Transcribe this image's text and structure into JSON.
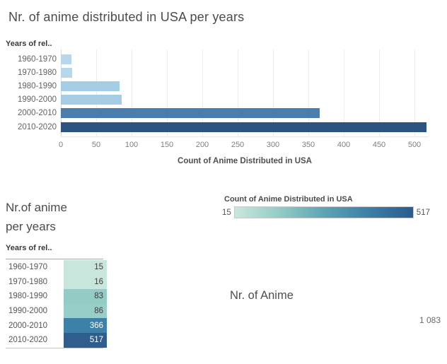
{
  "top_chart": {
    "title": "Nr. of anime distributed in USA per years",
    "field_label": "Years of rel..",
    "axis_title": "Count of Anime Distributed in USA"
  },
  "table_card": {
    "title_lines": [
      "Nr.of anime",
      "per years"
    ],
    "field_label": "Years of rel.."
  },
  "legend": {
    "title": "Count of Anime Distributed in USA",
    "min_label": "15",
    "max_label": "517",
    "gradient_colors": [
      "#c9e7dd",
      "#93ccc5",
      "#5da4b3",
      "#3d7fa7",
      "#2b5c8e"
    ]
  },
  "text_card": {
    "title": "Nr. of Anime",
    "total": "1 083"
  },
  "chart_data": [
    {
      "type": "bar",
      "orientation": "horizontal",
      "title": "Nr. of anime distributed in USA per years",
      "categories": [
        "1960-1970",
        "1970-1980",
        "1980-1990",
        "1990-2000",
        "2000-2010",
        "2010-2020"
      ],
      "values": [
        15,
        16,
        83,
        86,
        366,
        517
      ],
      "xlabel": "Count of Anime Distributed in USA",
      "ylabel": "Years of rel..",
      "xlim": [
        0,
        535
      ],
      "xticks": [
        0,
        50,
        100,
        150,
        200,
        250,
        300,
        350,
        400,
        450,
        500
      ],
      "grid": true,
      "legend_position": "none",
      "bar_colors": [
        "#b9d7eb",
        "#b9d7eb",
        "#a5cce5",
        "#a5cce5",
        "#4a7dab",
        "#2b5480"
      ]
    },
    {
      "type": "table",
      "title": "Nr.of anime per years",
      "row_header": "Years of rel..",
      "categories": [
        "1960-1970",
        "1970-1980",
        "1980-1990",
        "1990-2000",
        "2000-2010",
        "2010-2020"
      ],
      "values": [
        15,
        16,
        83,
        86,
        366,
        517
      ],
      "cell_colors": [
        "#c8e6dc",
        "#c8e6dc",
        "#93ccc4",
        "#97cec7",
        "#3d80a8",
        "#2f5e8d"
      ],
      "cell_text_colors": [
        "#3c3c3c",
        "#3c3c3c",
        "#3c3c3c",
        "#3c3c3c",
        "#ffffff",
        "#ffffff"
      ]
    },
    {
      "type": "gradient-legend",
      "title": "Count of Anime Distributed in USA",
      "min": 15,
      "max": 517
    },
    {
      "type": "text",
      "title": "Nr. of Anime",
      "value": "1 083"
    }
  ]
}
